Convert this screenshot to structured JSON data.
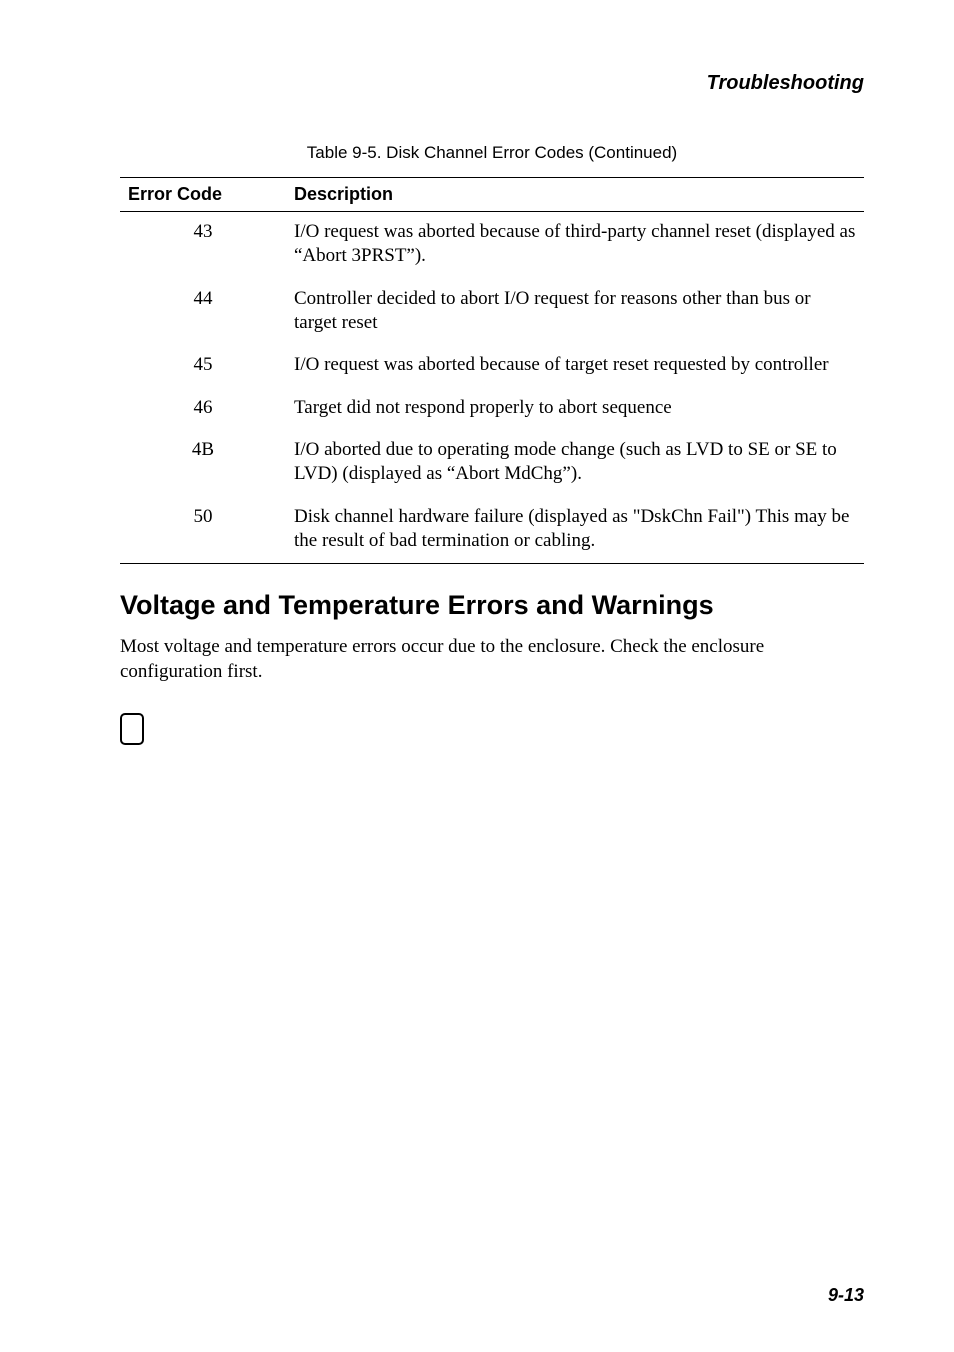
{
  "running_head": "Troubleshooting",
  "table": {
    "caption": "Table 9-5. Disk Channel Error Codes (Continued)",
    "headers": {
      "code": "Error Code",
      "desc": "Description"
    },
    "header_fontsize": 18,
    "body_fontsize": 19,
    "border_color": "#000000",
    "code_col_width": 150,
    "rows": [
      {
        "code": "43",
        "desc": "I/O request was aborted because of third-party channel reset (displayed as “Abort 3PRST”)."
      },
      {
        "code": "44",
        "desc": "Controller decided to abort I/O request for reasons other than bus or target reset"
      },
      {
        "code": "45",
        "desc": "I/O request was aborted because of target reset requested by controller"
      },
      {
        "code": "46",
        "desc": "Target did not respond properly to abort sequence"
      },
      {
        "code": "4B",
        "desc": "I/O aborted due to operating mode change (such as LVD to SE or SE to LVD) (displayed as “Abort MdChg”)."
      },
      {
        "code": "50",
        "desc": "Disk channel hardware failure (displayed as \"DskChn Fail\")  This may be the result of bad termination or cabling."
      }
    ]
  },
  "section": {
    "heading": "Voltage and Temperature Errors and Warnings",
    "paragraph": "Most voltage and temperature errors occur due to the enclosure. Check the enclosure configuration first."
  },
  "page_number": "9-13",
  "style": {
    "background_color": "#ffffff",
    "text_color": "#000000",
    "sans_font": "Arial, Helvetica, sans-serif",
    "serif_font": "\"Times New Roman\", Times, serif",
    "running_head_fontsize": 20,
    "caption_fontsize": 17,
    "heading_fontsize": 27,
    "body_fontsize": 19,
    "page_number_fontsize": 18,
    "end_marker": {
      "width": 24,
      "height": 32,
      "border_width": 2.5,
      "border_radius": 5,
      "border_color": "#000000"
    }
  }
}
